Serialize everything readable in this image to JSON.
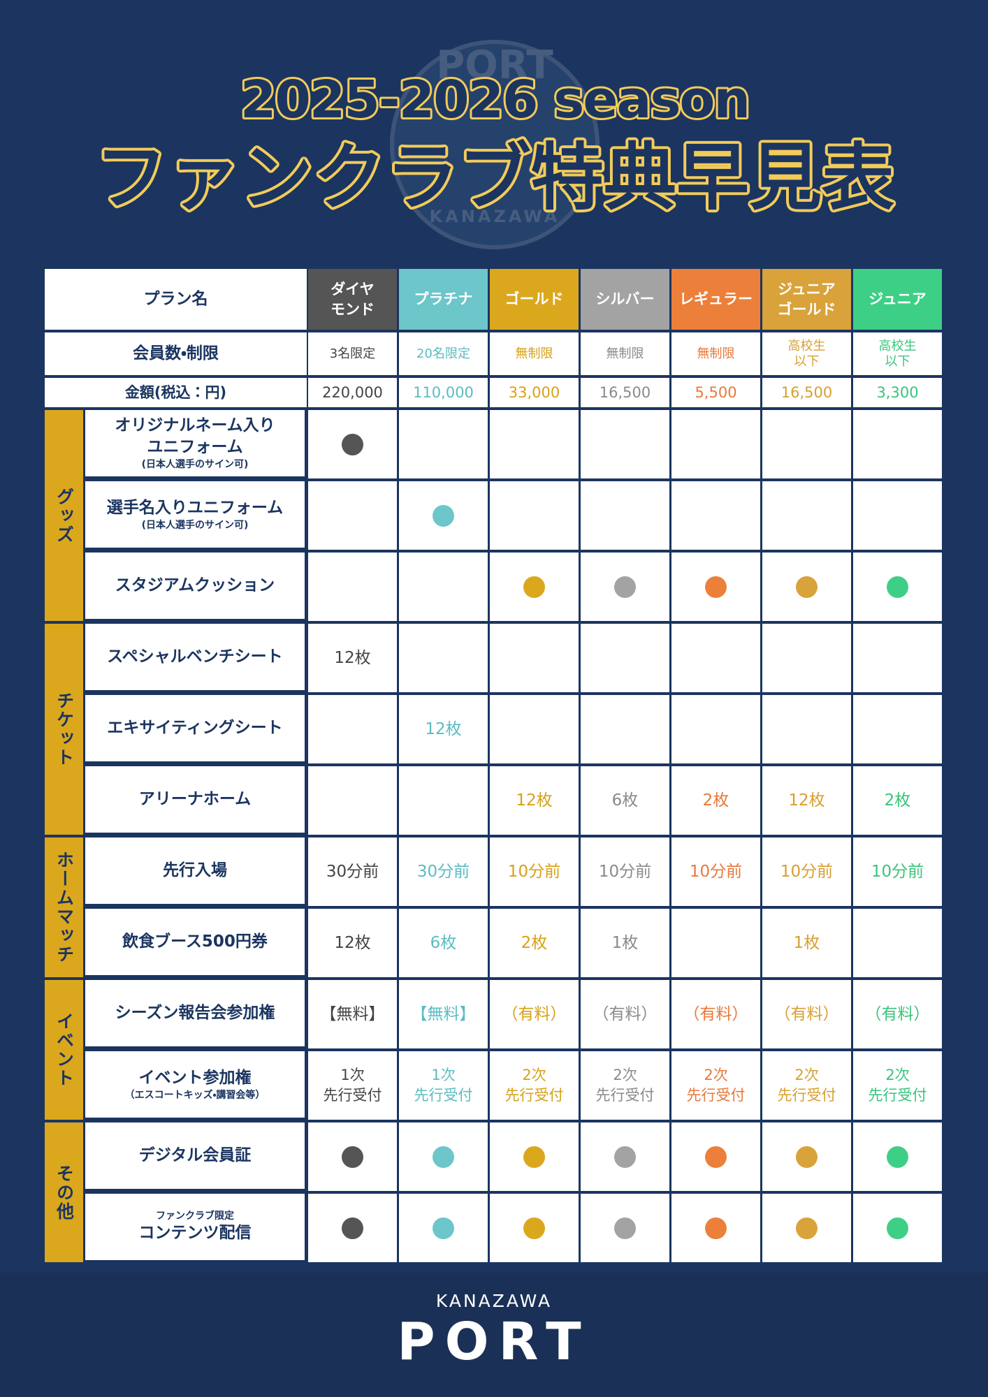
{
  "header": {
    "season": "2025-2026 season",
    "title": "ファンクラブ特典早見表"
  },
  "logo": {
    "top": "PORT",
    "bottom": "KANAZAWA"
  },
  "table": {
    "plan_label": "プラン名",
    "plans": [
      {
        "name": "ダイヤ\nモンド",
        "color": "#555555",
        "text_color": "#444444"
      },
      {
        "name": "プラチナ",
        "color": "#6cc6ca",
        "text_color": "#5bbcc1"
      },
      {
        "name": "ゴールド",
        "color": "#dba71d",
        "text_color": "#d6a115"
      },
      {
        "name": "シルバー",
        "color": "#a3a3a3",
        "text_color": "#8a8a8a"
      },
      {
        "name": "レギュラー",
        "color": "#ec803a",
        "text_color": "#e9783a"
      },
      {
        "name": "ジュニア\nゴールド",
        "color": "#d9a23a",
        "text_color": "#d79f30"
      },
      {
        "name": "ジュニア",
        "color": "#3ecf86",
        "text_color": "#38c47c"
      }
    ],
    "members_label": "会員数・制限",
    "members": [
      "3名限定",
      "20名限定",
      "無制限",
      "無制限",
      "無制限",
      "高校生\n以下",
      "高校生\n以下"
    ],
    "price_label": "金額(税込：円)",
    "prices": [
      "220,000",
      "110,000",
      "33,000",
      "16,500",
      "5,500",
      "16,500",
      "3,300"
    ],
    "groups": [
      {
        "name": "グッズ",
        "rows": [
          {
            "label": "オリジナルネーム入り\nユニフォーム",
            "note": "(日本人選手のサイン可)",
            "cells": [
              true,
              null,
              null,
              null,
              null,
              null,
              null
            ]
          },
          {
            "label": "選手名入りユニフォーム",
            "note": "(日本人選手のサイン可)",
            "cells": [
              null,
              true,
              null,
              null,
              null,
              null,
              null
            ]
          },
          {
            "label": "スタジアムクッション",
            "cells": [
              null,
              null,
              true,
              true,
              true,
              true,
              true
            ]
          }
        ]
      },
      {
        "name": "チケット",
        "rows": [
          {
            "label": "スペシャルベンチシート",
            "cells": [
              "12枚",
              null,
              null,
              null,
              null,
              null,
              null
            ]
          },
          {
            "label": "エキサイティングシート",
            "cells": [
              null,
              "12枚",
              null,
              null,
              null,
              null,
              null
            ]
          },
          {
            "label": "アリーナホーム",
            "cells": [
              null,
              null,
              "12枚",
              "6枚",
              "2枚",
              "12枚",
              "2枚"
            ]
          }
        ]
      },
      {
        "name": "ホームマッチ",
        "rows": [
          {
            "label": "先行入場",
            "cells": [
              "30分前",
              "30分前",
              "10分前",
              "10分前",
              "10分前",
              "10分前",
              "10分前"
            ]
          },
          {
            "label": "飲食ブース500円券",
            "cells": [
              "12枚",
              "6枚",
              "2枚",
              "1枚",
              null,
              "1枚",
              null
            ]
          }
        ]
      },
      {
        "name": "イベント",
        "rows": [
          {
            "label": "シーズン報告会参加権",
            "cells": [
              "【無料】",
              "【無料】",
              "（有料）",
              "（有料）",
              "（有料）",
              "（有料）",
              "（有料）"
            ]
          },
          {
            "label": "イベント参加権",
            "note": "（エスコートキッズ・講習会等）",
            "cells": [
              "1次\n先行受付",
              "1次\n先行受付",
              "2次\n先行受付",
              "2次\n先行受付",
              "2次\n先行受付",
              "2次\n先行受付",
              "2次\n先行受付"
            ]
          }
        ]
      },
      {
        "name": "その他",
        "rows": [
          {
            "label": "デジタル会員証",
            "cells": [
              true,
              true,
              true,
              true,
              true,
              true,
              true
            ]
          },
          {
            "prefix": "ファンクラブ限定",
            "label": "コンテンツ配信",
            "cells": [
              true,
              true,
              true,
              true,
              true,
              true,
              true
            ]
          }
        ]
      }
    ]
  },
  "footer": {
    "brand_top": "KANAZAWA",
    "brand": "PORT"
  }
}
